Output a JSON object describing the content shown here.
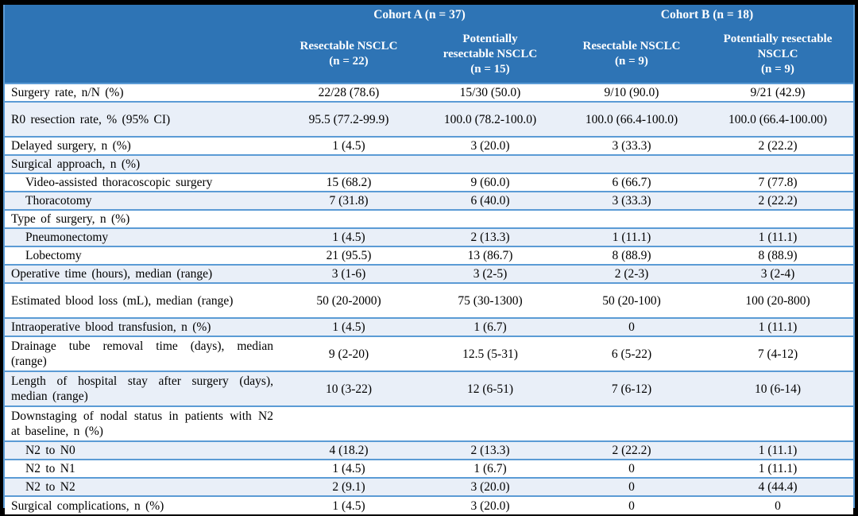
{
  "colors": {
    "header_bg": "#2E74B5",
    "header_text": "#FFFFFF",
    "stripe_row_bg": "#E9EFF8",
    "grid_border": "#5B9BD5",
    "outer_frame": "#000000",
    "body_text": "#000000"
  },
  "header": {
    "groups": [
      {
        "label": "Cohort A (n = 37)"
      },
      {
        "label": "Cohort B (n = 18)"
      }
    ],
    "columns": [
      {
        "lines": [
          "Resectable NSCLC"
        ],
        "n": "(n = 22)"
      },
      {
        "lines": [
          "Potentially",
          "resectable NSCLC"
        ],
        "n": "(n = 15)"
      },
      {
        "lines": [
          "Resectable NSCLC"
        ],
        "n": "(n = 9)"
      },
      {
        "lines": [
          "Potentially resectable",
          "NSCLC"
        ],
        "n": "(n = 9)"
      }
    ]
  },
  "rows": [
    {
      "label": "Surgery rate, n/N (%)",
      "indent": false,
      "tall": false,
      "values": [
        "22/28 (78.6)",
        "15/30 (50.0)",
        "9/10 (90.0)",
        "9/21 (42.9)"
      ]
    },
    {
      "label": "R0 resection rate, % (95% CI)",
      "indent": false,
      "tall": true,
      "values": [
        "95.5 (77.2-99.9)",
        "100.0 (78.2-100.0)",
        "100.0 (66.4-100.0)",
        "100.0 (66.4-100.00)"
      ]
    },
    {
      "label": "Delayed surgery, n (%)",
      "indent": false,
      "tall": false,
      "values": [
        "1 (4.5)",
        "3 (20.0)",
        "3 (33.3)",
        "2 (22.2)"
      ]
    },
    {
      "label": "Surgical approach, n (%)",
      "indent": false,
      "tall": false,
      "values": [
        "",
        "",
        "",
        ""
      ]
    },
    {
      "label": "Video-assisted thoracoscopic surgery",
      "indent": true,
      "tall": false,
      "values": [
        "15 (68.2)",
        "9 (60.0)",
        "6 (66.7)",
        "7 (77.8)"
      ]
    },
    {
      "label": "Thoracotomy",
      "indent": true,
      "tall": false,
      "values": [
        "7 (31.8)",
        "6 (40.0)",
        "3 (33.3)",
        "2 (22.2)"
      ]
    },
    {
      "label": "Type of surgery, n (%)",
      "indent": false,
      "tall": false,
      "values": [
        "",
        "",
        "",
        ""
      ]
    },
    {
      "label": "Pneumonectomy",
      "indent": true,
      "tall": false,
      "values": [
        "1 (4.5)",
        "2 (13.3)",
        "1 (11.1)",
        "1 (11.1)"
      ]
    },
    {
      "label": "Lobectomy",
      "indent": true,
      "tall": false,
      "values": [
        "21 (95.5)",
        "13 (86.7)",
        "8 (88.9)",
        "8 (88.9)"
      ]
    },
    {
      "label": "Operative time (hours), median (range)",
      "indent": false,
      "tall": false,
      "values": [
        "3 (1-6)",
        "3 (2-5)",
        "2 (2-3)",
        "3 (2-4)"
      ]
    },
    {
      "label": "Estimated blood loss (mL), median (range)",
      "indent": false,
      "tall": true,
      "values": [
        "50 (20-2000)",
        "75 (30-1300)",
        "50 (20-100)",
        "100 (20-800)"
      ]
    },
    {
      "label": "Intraoperative blood transfusion, n (%)",
      "indent": false,
      "tall": false,
      "values": [
        "1 (4.5)",
        "1 (6.7)",
        "0",
        "1 (11.1)"
      ]
    },
    {
      "label": "Drainage tube removal time (days), median (range)",
      "indent": false,
      "tall": true,
      "values": [
        "9 (2-20)",
        "12.5 (5-31)",
        "6 (5-22)",
        "7 (4-12)"
      ]
    },
    {
      "label": "Length of hospital stay after surgery (days), median (range)",
      "indent": false,
      "tall": true,
      "values": [
        "10 (3-22)",
        "12 (6-51)",
        "7 (6-12)",
        "10 (6-14)"
      ]
    },
    {
      "label": "Downstaging of nodal status in patients with N2 at baseline, n (%)",
      "indent": false,
      "tall": true,
      "values": [
        "",
        "",
        "",
        ""
      ]
    },
    {
      "label": "N2 to N0",
      "indent": true,
      "tall": false,
      "values": [
        "4 (18.2)",
        "2 (13.3)",
        "2 (22.2)",
        "1 (11.1)"
      ]
    },
    {
      "label": "N2 to N1",
      "indent": true,
      "tall": false,
      "values": [
        "1 (4.5)",
        "1 (6.7)",
        "0",
        "1 (11.1)"
      ]
    },
    {
      "label": "N2 to N2",
      "indent": true,
      "tall": false,
      "values": [
        "2 (9.1)",
        "3 (20.0)",
        "0",
        "4 (44.4)"
      ]
    },
    {
      "label": "Surgical complications, n (%)",
      "indent": false,
      "tall": false,
      "values": [
        "1 (4.5)",
        "3 (20.0)",
        "0",
        "0"
      ]
    }
  ]
}
